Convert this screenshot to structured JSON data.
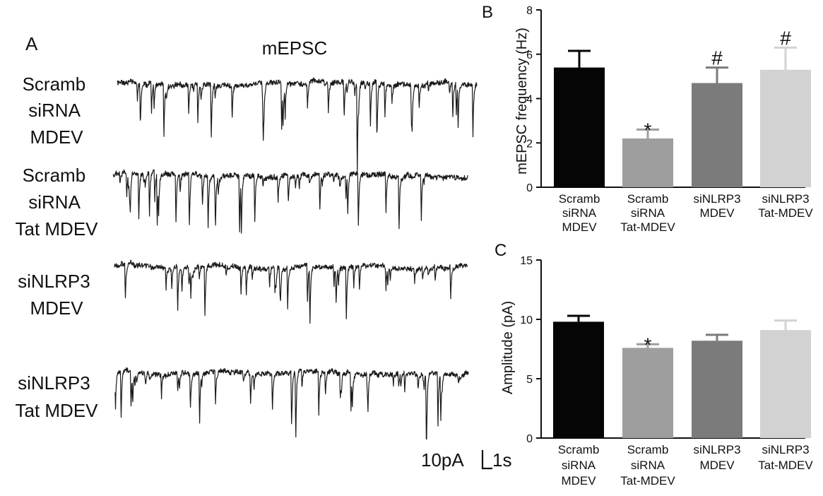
{
  "panel_a": {
    "letter": "A",
    "title": "mEPSC",
    "rows": [
      {
        "label_lines": [
          "Scramb",
          "siRNA",
          "MDEV"
        ]
      },
      {
        "label_lines": [
          "Scramb",
          "siRNA",
          "Tat MDEV"
        ]
      },
      {
        "label_lines": [
          "siNLRP3",
          "MDEV"
        ]
      },
      {
        "label_lines": [
          "siNLRP3",
          "Tat MDEV"
        ]
      }
    ],
    "scale_bar": {
      "amplitude_label": "10pA",
      "time_label": "1s"
    }
  },
  "colors": {
    "trace": "#1a1a1a",
    "bars": [
      "#050505",
      "#9e9e9e",
      "#7b7b7b",
      "#d2d2d2"
    ]
  },
  "chart_data": [
    {
      "type": "bar",
      "panel_letter": "B",
      "ylabel": "mEPSC frequency (Hz)",
      "ylim": [
        0,
        8
      ],
      "yticks": [
        0,
        2,
        4,
        6,
        8
      ],
      "categories": [
        [
          "Scramb",
          "siRNA",
          "MDEV"
        ],
        [
          "Scramb",
          "siRNA",
          "Tat-MDEV"
        ],
        [
          "siNLRP3",
          "MDEV"
        ],
        [
          "siNLRP3",
          "Tat-MDEV"
        ]
      ],
      "values": [
        5.4,
        2.2,
        4.7,
        5.3
      ],
      "errors": [
        0.75,
        0.4,
        0.7,
        1.0
      ],
      "annotations": [
        "",
        "*",
        "#",
        "#"
      ]
    },
    {
      "type": "bar",
      "panel_letter": "C",
      "ylabel": "Amplitude (pA)",
      "ylim": [
        0,
        15
      ],
      "yticks": [
        0,
        5,
        10,
        15
      ],
      "categories": [
        [
          "Scramb",
          "siRNA",
          "MDEV"
        ],
        [
          "Scramb",
          "siRNA",
          "Tat-MDEV"
        ],
        [
          "siNLRP3",
          "MDEV"
        ],
        [
          "siNLRP3",
          "Tat-MDEV"
        ]
      ],
      "values": [
        9.8,
        7.6,
        8.2,
        9.1
      ],
      "errors": [
        0.5,
        0.3,
        0.5,
        0.8
      ],
      "annotations": [
        "",
        "*",
        "",
        ""
      ]
    }
  ]
}
